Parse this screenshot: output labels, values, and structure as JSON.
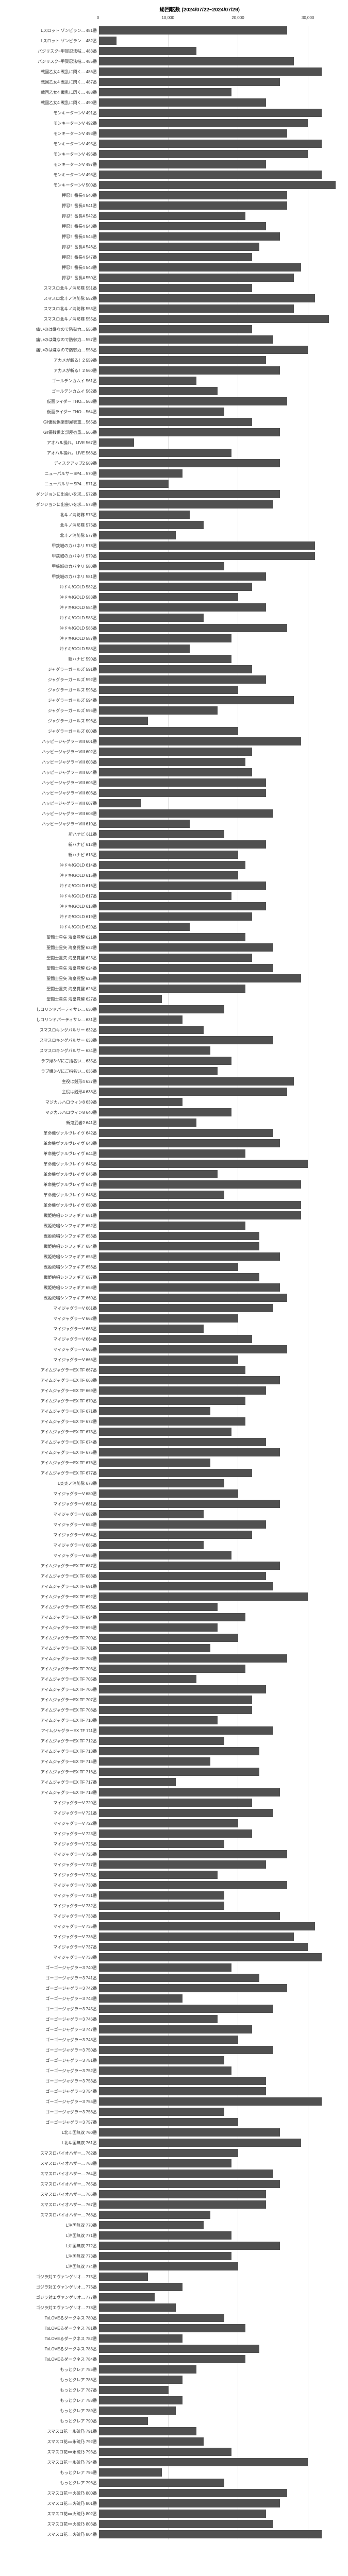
{
  "chart": {
    "title": "総回転数 (2024/07/22~2024/07/29)",
    "xmax": 35000,
    "xtick_step": 10000,
    "xticks": [
      0,
      10000,
      20000,
      30000
    ],
    "bar_color": "#505050",
    "grid_color": "#e0e0e0",
    "background_color": "#ffffff",
    "title_fontsize": 10,
    "label_fontsize": 8,
    "rows": [
      {
        "label": "Lスロット ゾンビラン...  481番",
        "value": 27000
      },
      {
        "label": "Lスロット ゾンビラン...  482番",
        "value": 2500
      },
      {
        "label": "バジリスク~甲賀忍法帖...  483番",
        "value": 14000
      },
      {
        "label": "バジリスク~甲賀忍法帖...  485番",
        "value": 28000
      },
      {
        "label": "戦国乙女4 戦乱に閃く...  486番",
        "value": 32000
      },
      {
        "label": "戦国乙女4 戦乱に閃く...  487番",
        "value": 26000
      },
      {
        "label": "戦国乙女4 戦乱に閃く...  488番",
        "value": 19000
      },
      {
        "label": "戦国乙女4 戦乱に閃く...  490番",
        "value": 24000
      },
      {
        "label": "モンキーターンV  491番",
        "value": 32000
      },
      {
        "label": "モンキーターンV  492番",
        "value": 30000
      },
      {
        "label": "モンキーターンV  493番",
        "value": 27000
      },
      {
        "label": "モンキーターンV  495番",
        "value": 32000
      },
      {
        "label": "モンキーターンV  496番",
        "value": 30000
      },
      {
        "label": "モンキーターンV  497番",
        "value": 24000
      },
      {
        "label": "モンキーターンV  498番",
        "value": 32000
      },
      {
        "label": "モンキーターンV  500番",
        "value": 34000
      },
      {
        "label": "押忍！番長4  540番",
        "value": 27000
      },
      {
        "label": "押忍！番長4  541番",
        "value": 27000
      },
      {
        "label": "押忍！番長4  542番",
        "value": 21000
      },
      {
        "label": "押忍！番長4  543番",
        "value": 24000
      },
      {
        "label": "押忍！番長4  545番",
        "value": 26000
      },
      {
        "label": "押忍！番長4  546番",
        "value": 23000
      },
      {
        "label": "押忍！番長4  547番",
        "value": 22000
      },
      {
        "label": "押忍！番長4  548番",
        "value": 29000
      },
      {
        "label": "押忍！番長4  550番",
        "value": 28000
      },
      {
        "label": "スマスロ北斗ノ消防隊  551番",
        "value": 22000
      },
      {
        "label": "スマスロ北斗ノ消防隊  552番",
        "value": 31000
      },
      {
        "label": "スマスロ北斗ノ消防隊  553番",
        "value": 28000
      },
      {
        "label": "スマスロ北斗ノ消防隊  555番",
        "value": 33000
      },
      {
        "label": "痛いのは嫌なので防御力...  556番",
        "value": 22000
      },
      {
        "label": "痛いのは嫌なので防御力...  557番",
        "value": 25000
      },
      {
        "label": "痛いのは嫌なので防御力...  558番",
        "value": 30000
      },
      {
        "label": "アカメが斬る！2  559番",
        "value": 24000
      },
      {
        "label": "アカメが斬る！2  560番",
        "value": 26000
      },
      {
        "label": "ゴールデンカムイ  561番",
        "value": 14000
      },
      {
        "label": "ゴールデンカムイ  562番",
        "value": 17000
      },
      {
        "label": "仮面ライダー THO...  563番",
        "value": 27000
      },
      {
        "label": "仮面ライダー THO...  564番",
        "value": 18000
      },
      {
        "label": "Gll優駿倶楽部屋壱重...  565番",
        "value": 22000
      },
      {
        "label": "Gll優駿倶楽部屋壱重...  566番",
        "value": 26000
      },
      {
        "label": "アオハル操れ。LIVE  567番",
        "value": 5000
      },
      {
        "label": "アオハル操れ。LIVE  568番",
        "value": 19000
      },
      {
        "label": "ディスクアップ2  569番",
        "value": 26000
      },
      {
        "label": "ニューパルサーSP4...  570番",
        "value": 12000
      },
      {
        "label": "ニューパルサーSP4...  571番",
        "value": 10000
      },
      {
        "label": "ダンジョンに出会いを求...  572番",
        "value": 26000
      },
      {
        "label": "ダンジョンに出会いを求...  573番",
        "value": 25000
      },
      {
        "label": "北斗ノ消防隊  575番",
        "value": 13000
      },
      {
        "label": "北斗ノ消防隊  576番",
        "value": 15000
      },
      {
        "label": "北斗ノ消防隊  577番",
        "value": 11000
      },
      {
        "label": "甲鉄城のカバネリ  578番",
        "value": 31000
      },
      {
        "label": "甲鉄城のカバネリ  579番",
        "value": 31000
      },
      {
        "label": "甲鉄城のカバネリ  580番",
        "value": 18000
      },
      {
        "label": "甲鉄城のカバネリ  581番",
        "value": 24000
      },
      {
        "label": "沖ドキ!GOLD  582番",
        "value": 22000
      },
      {
        "label": "沖ドキ!GOLD  583番",
        "value": 20000
      },
      {
        "label": "沖ドキ!GOLD  584番",
        "value": 24000
      },
      {
        "label": "沖ドキ!GOLD  585番",
        "value": 15000
      },
      {
        "label": "沖ドキ!GOLD  586番",
        "value": 27000
      },
      {
        "label": "沖ドキ!GOLD  587番",
        "value": 19000
      },
      {
        "label": "沖ドキ!GOLD  588番",
        "value": 13000
      },
      {
        "label": "新ハナビ  590番",
        "value": 19000
      },
      {
        "label": "ジャグラーガールズ  591番",
        "value": 22000
      },
      {
        "label": "ジャグラーガールズ  592番",
        "value": 24000
      },
      {
        "label": "ジャグラーガールズ  593番",
        "value": 20000
      },
      {
        "label": "ジャグラーガールズ  594番",
        "value": 28000
      },
      {
        "label": "ジャグラーガールズ  595番",
        "value": 17000
      },
      {
        "label": "ジャグラーガールズ  596番",
        "value": 7000
      },
      {
        "label": "ジャグラーガールズ  600番",
        "value": 20000
      },
      {
        "label": "ハッピージャグラーVIII  601番",
        "value": 29000
      },
      {
        "label": "ハッピージャグラーVIII  602番",
        "value": 22000
      },
      {
        "label": "ハッピージャグラーVIII  603番",
        "value": 21000
      },
      {
        "label": "ハッピージャグラーVIII  604番",
        "value": 22000
      },
      {
        "label": "ハッピージャグラーVIII  605番",
        "value": 24000
      },
      {
        "label": "ハッピージャグラーVIII  606番",
        "value": 24000
      },
      {
        "label": "ハッピージャグラーVIII  607番",
        "value": 6000
      },
      {
        "label": "ハッピージャグラーVIII  608番",
        "value": 25000
      },
      {
        "label": "ハッピージャグラーVIII  610番",
        "value": 13000
      },
      {
        "label": "新ハナビ  611番",
        "value": 18000
      },
      {
        "label": "新ハナビ  612番",
        "value": 24000
      },
      {
        "label": "新ハナビ  613番",
        "value": 20000
      },
      {
        "label": "沖ドキ!GOLD  614番",
        "value": 21000
      },
      {
        "label": "沖ドキ!GOLD  615番",
        "value": 20000
      },
      {
        "label": "沖ドキ!GOLD  616番",
        "value": 24000
      },
      {
        "label": "沖ドキ!GOLD  617番",
        "value": 19000
      },
      {
        "label": "沖ドキ!GOLD  618番",
        "value": 24000
      },
      {
        "label": "沖ドキ!GOLD  619番",
        "value": 22000
      },
      {
        "label": "沖ドキ!GOLD  620番",
        "value": 13000
      },
      {
        "label": "聖闘士星矢 海皇覚醒  621番",
        "value": 21000
      },
      {
        "label": "聖闘士星矢 海皇覚醒  622番",
        "value": 25000
      },
      {
        "label": "聖闘士星矢 海皇覚醒  623番",
        "value": 22000
      },
      {
        "label": "聖闘士星矢 海皇覚醒  624番",
        "value": 25000
      },
      {
        "label": "聖闘士星矢 海皇覚醒  625番",
        "value": 29000
      },
      {
        "label": "聖闘士星矢 海皇覚醒  626番",
        "value": 21000
      },
      {
        "label": "聖闘士星矢 海皇覚醒  627番",
        "value": 9000
      },
      {
        "label": "しコリンドパーティサレ...  630番",
        "value": 18000
      },
      {
        "label": "しコリンドパーティサレ...  631番",
        "value": 12000
      },
      {
        "label": "スマスロキングパルサー  632番",
        "value": 15000
      },
      {
        "label": "スマスロキングパルサー  633番",
        "value": 25000
      },
      {
        "label": "スマスロキングパルサー  634番",
        "value": 16000
      },
      {
        "label": "ラブ嬢3~Vにご指名い...  635番",
        "value": 19000
      },
      {
        "label": "ラブ嬢3~Vにご指名い...  636番",
        "value": 17000
      },
      {
        "label": "主役は銭形4  637番",
        "value": 28000
      },
      {
        "label": "主役は銭形4  638番",
        "value": 27000
      },
      {
        "label": "マジカルハロウィン8  639番",
        "value": 12000
      },
      {
        "label": "マジカルハロウィン8  640番",
        "value": 19000
      },
      {
        "label": "新鬼武者2  641番",
        "value": 14000
      },
      {
        "label": "革命機ヴァルヴレイヴ  642番",
        "value": 25000
      },
      {
        "label": "革命機ヴァルヴレイヴ  643番",
        "value": 26000
      },
      {
        "label": "革命機ヴァルヴレイヴ  644番",
        "value": 21000
      },
      {
        "label": "革命機ヴァルヴレイヴ  645番",
        "value": 30000
      },
      {
        "label": "革命機ヴァルヴレイヴ  646番",
        "value": 17000
      },
      {
        "label": "革命機ヴァルヴレイヴ  647番",
        "value": 29000
      },
      {
        "label": "革命機ヴァルヴレイヴ  648番",
        "value": 18000
      },
      {
        "label": "革命機ヴァルヴレイヴ  650番",
        "value": 29000
      },
      {
        "label": "戦姫絶唱シンフォギア  651番",
        "value": 29000
      },
      {
        "label": "戦姫絶唱シンフォギア  652番",
        "value": 21000
      },
      {
        "label": "戦姫絶唱シンフォギア  653番",
        "value": 23000
      },
      {
        "label": "戦姫絶唱シンフォギア  654番",
        "value": 23000
      },
      {
        "label": "戦姫絶唱シンフォギア  655番",
        "value": 26000
      },
      {
        "label": "戦姫絶唱シンフォギア  656番",
        "value": 20000
      },
      {
        "label": "戦姫絶唱シンフォギア  657番",
        "value": 23000
      },
      {
        "label": "戦姫絶唱シンフォギア  658番",
        "value": 26000
      },
      {
        "label": "戦姫絶唱シンフォギア  660番",
        "value": 27000
      },
      {
        "label": "マイジャグラーV  661番",
        "value": 25000
      },
      {
        "label": "マイジャグラーV  662番",
        "value": 20000
      },
      {
        "label": "マイジャグラーV  663番",
        "value": 15000
      },
      {
        "label": "マイジャグラーV  664番",
        "value": 22000
      },
      {
        "label": "マイジャグラーV  665番",
        "value": 27000
      },
      {
        "label": "マイジャグラーV  666番",
        "value": 20000
      },
      {
        "label": "アイムジャグラーEX TF  667番",
        "value": 21000
      },
      {
        "label": "アイムジャグラーEX TF  668番",
        "value": 26000
      },
      {
        "label": "アイムジャグラーEX TF  669番",
        "value": 24000
      },
      {
        "label": "アイムジャグラーEX TF  670番",
        "value": 21000
      },
      {
        "label": "アイムジャグラーEX TF  671番",
        "value": 16000
      },
      {
        "label": "アイムジャグラーEX TF  672番",
        "value": 21000
      },
      {
        "label": "アイムジャグラーEX TF  673番",
        "value": 19000
      },
      {
        "label": "アイムジャグラーEX TF  674番",
        "value": 24000
      },
      {
        "label": "アイムジャグラーEX TF  675番",
        "value": 26000
      },
      {
        "label": "アイムジャグラーEX TF  676番",
        "value": 16000
      },
      {
        "label": "アイムジャグラーEX TF  677番",
        "value": 22000
      },
      {
        "label": "L炎炎ノ消防隊  678番",
        "value": 18000
      },
      {
        "label": "マイジャグラーV  680番",
        "value": 20000
      },
      {
        "label": "マイジャグラーV  681番",
        "value": 26000
      },
      {
        "label": "マイジャグラーV  682番",
        "value": 15000
      },
      {
        "label": "マイジャグラーV  683番",
        "value": 24000
      },
      {
        "label": "マイジャグラーV  684番",
        "value": 22000
      },
      {
        "label": "マイジャグラーV  685番",
        "value": 15000
      },
      {
        "label": "マイジャグラーV  686番",
        "value": 19000
      },
      {
        "label": "アイムジャグラーEX TF  687番",
        "value": 26000
      },
      {
        "label": "アイムジャグラーEX TF  688番",
        "value": 24000
      },
      {
        "label": "アイムジャグラーEX TF  691番",
        "value": 25000
      },
      {
        "label": "アイムジャグラーEX TF  692番",
        "value": 30000
      },
      {
        "label": "アイムジャグラーEX TF  693番",
        "value": 17000
      },
      {
        "label": "アイムジャグラーEX TF  694番",
        "value": 21000
      },
      {
        "label": "アイムジャグラーEX TF  695番",
        "value": 17000
      },
      {
        "label": "アイムジャグラーEX TF  700番",
        "value": 20000
      },
      {
        "label": "アイムジャグラーEX TF  701番",
        "value": 16000
      },
      {
        "label": "アイムジャグラーEX TF  702番",
        "value": 27000
      },
      {
        "label": "アイムジャグラーEX TF  703番",
        "value": 21000
      },
      {
        "label": "アイムジャグラーEX TF  705番",
        "value": 14000
      },
      {
        "label": "アイムジャグラーEX TF  706番",
        "value": 24000
      },
      {
        "label": "アイムジャグラーEX TF  707番",
        "value": 22000
      },
      {
        "label": "アイムジャグラーEX TF  708番",
        "value": 22000
      },
      {
        "label": "アイムジャグラーEX TF  710番",
        "value": 17000
      },
      {
        "label": "アイムジャグラーEX TF  711番",
        "value": 25000
      },
      {
        "label": "アイムジャグラーEX TF  712番",
        "value": 18000
      },
      {
        "label": "アイムジャグラーEX TF  713番",
        "value": 23000
      },
      {
        "label": "アイムジャグラーEX TF  715番",
        "value": 16000
      },
      {
        "label": "アイムジャグラーEX TF  716番",
        "value": 23000
      },
      {
        "label": "アイムジャグラーEX TF  717番",
        "value": 11000
      },
      {
        "label": "アイムジャグラーEX TF  718番",
        "value": 26000
      },
      {
        "label": "マイジャグラーV  720番",
        "value": 22000
      },
      {
        "label": "マイジャグラーV  721番",
        "value": 25000
      },
      {
        "label": "マイジャグラーV  722番",
        "value": 20000
      },
      {
        "label": "マイジャグラーV  723番",
        "value": 22000
      },
      {
        "label": "マイジャグラーV  725番",
        "value": 18000
      },
      {
        "label": "マイジャグラーV  726番",
        "value": 27000
      },
      {
        "label": "マイジャグラーV  727番",
        "value": 24000
      },
      {
        "label": "マイジャグラーV  728番",
        "value": 17000
      },
      {
        "label": "マイジャグラーV  730番",
        "value": 27000
      },
      {
        "label": "マイジャグラーV  731番",
        "value": 18000
      },
      {
        "label": "マイジャグラーV  732番",
        "value": 18000
      },
      {
        "label": "マイジャグラーV  733番",
        "value": 26000
      },
      {
        "label": "マイジャグラーV  735番",
        "value": 31000
      },
      {
        "label": "マイジャグラーV  736番",
        "value": 28000
      },
      {
        "label": "マイジャグラーV  737番",
        "value": 30000
      },
      {
        "label": "マイジャグラーV  738番",
        "value": 32000
      },
      {
        "label": "ゴーゴージャグラー3  740番",
        "value": 19000
      },
      {
        "label": "ゴーゴージャグラー3  741番",
        "value": 23000
      },
      {
        "label": "ゴーゴージャグラー3  742番",
        "value": 27000
      },
      {
        "label": "ゴーゴージャグラー3  743番",
        "value": 12000
      },
      {
        "label": "ゴーゴージャグラー3  745番",
        "value": 25000
      },
      {
        "label": "ゴーゴージャグラー3  746番",
        "value": 17000
      },
      {
        "label": "ゴーゴージャグラー3  747番",
        "value": 22000
      },
      {
        "label": "ゴーゴージャグラー3  748番",
        "value": 20000
      },
      {
        "label": "ゴーゴージャグラー3  750番",
        "value": 25000
      },
      {
        "label": "ゴーゴージャグラー3  751番",
        "value": 18000
      },
      {
        "label": "ゴーゴージャグラー3  752番",
        "value": 19000
      },
      {
        "label": "ゴーゴージャグラー3  753番",
        "value": 24000
      },
      {
        "label": "ゴーゴージャグラー3  754番",
        "value": 24000
      },
      {
        "label": "ゴーゴージャグラー3  755番",
        "value": 32000
      },
      {
        "label": "ゴーゴージャグラー3  756番",
        "value": 18000
      },
      {
        "label": "ゴーゴージャグラー3  757番",
        "value": 20000
      },
      {
        "label": "L北斗国無双  760番",
        "value": 26000
      },
      {
        "label": "L北斗国無双  761番",
        "value": 29000
      },
      {
        "label": "スマスロバイオハザー...  762番",
        "value": 20000
      },
      {
        "label": "スマスロバイオハザー...  763番",
        "value": 19000
      },
      {
        "label": "スマスロバイオハザー...  764番",
        "value": 25000
      },
      {
        "label": "スマスロバイオハザー...  765番",
        "value": 26000
      },
      {
        "label": "スマスロバイオハザー...  766番",
        "value": 24000
      },
      {
        "label": "スマスロバイオハザー...  767番",
        "value": 24000
      },
      {
        "label": "スマスロバイオハザー...  768番",
        "value": 16000
      },
      {
        "label": "L沖国無双  770番",
        "value": 15000
      },
      {
        "label": "L沖国無双  771番",
        "value": 19000
      },
      {
        "label": "L沖国無双  772番",
        "value": 26000
      },
      {
        "label": "L沖国無双  773番",
        "value": 19000
      },
      {
        "label": "L沖国無双  774番",
        "value": 20000
      },
      {
        "label": "ゴジラ対エヴァンゲリオ...  775番",
        "value": 7000
      },
      {
        "label": "ゴジラ対エヴァンゲリオ...  776番",
        "value": 12000
      },
      {
        "label": "ゴジラ対エヴァンゲリオ...  777番",
        "value": 8000
      },
      {
        "label": "ゴジラ対エヴァンゲリオ...  778番",
        "value": 11000
      },
      {
        "label": "ToLOVEるダークネス  780番",
        "value": 18000
      },
      {
        "label": "ToLOVEるダークネス  781番",
        "value": 21000
      },
      {
        "label": "ToLOVEるダークネス  782番",
        "value": 12000
      },
      {
        "label": "ToLOVEるダークネス  783番",
        "value": 23000
      },
      {
        "label": "ToLOVEるダークネス  784番",
        "value": 21000
      },
      {
        "label": "もっとクレア  785番",
        "value": 14000
      },
      {
        "label": "もっとクレア  786番",
        "value": 12000
      },
      {
        "label": "もっとクレア  787番",
        "value": 10000
      },
      {
        "label": "もっとクレア  788番",
        "value": 12000
      },
      {
        "label": "もっとクレア  789番",
        "value": 11000
      },
      {
        "label": "もっとクレア  790番",
        "value": 7000
      },
      {
        "label": "スマスロ花==永硫乃  791番",
        "value": 14000
      },
      {
        "label": "スマスロ花==永硫乃  792番",
        "value": 15000
      },
      {
        "label": "スマスロ花==永硫乃  793番",
        "value": 19000
      },
      {
        "label": "スマスロ花==永硫乃  794番",
        "value": 30000
      },
      {
        "label": "もっとクレア  795番",
        "value": 9000
      },
      {
        "label": "もっとクレア  796番",
        "value": 18000
      },
      {
        "label": "スマスロ花==火硫乃  800番",
        "value": 27000
      },
      {
        "label": "スマスロ花==火硫乃  801番",
        "value": 26000
      },
      {
        "label": "スマスロ花==火硫乃  802番",
        "value": 24000
      },
      {
        "label": "スマスロ花==火硫乃  803番",
        "value": 25000
      },
      {
        "label": "スマスロ花==火硫乃  804番",
        "value": 32000
      }
    ]
  }
}
